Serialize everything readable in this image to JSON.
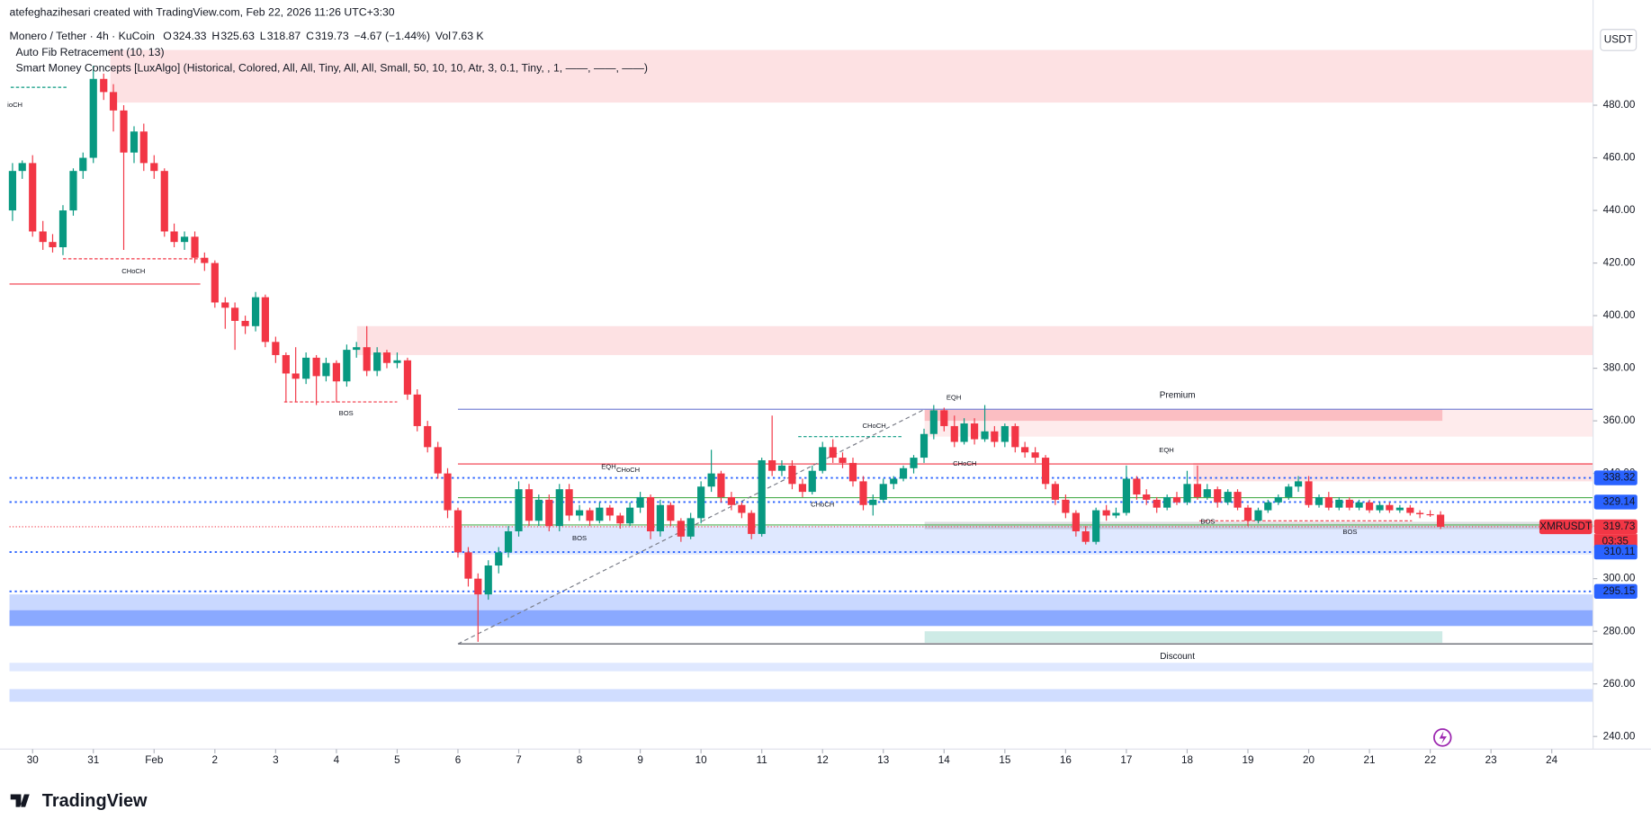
{
  "header": {
    "credit": "atefeghazihesari created with TradingView.com, Feb 22, 2026 11:26 UTC+3:30",
    "symbol": "Monero / Tether · 4h · KuCoin",
    "ohlc": [
      {
        "label": "O",
        "value": 324.33
      },
      {
        "label": "H",
        "value": 325.63
      },
      {
        "label": "L",
        "value": 318.87
      },
      {
        "label": "C",
        "value": 319.73
      }
    ],
    "change": "−4.67 (−1.44%)",
    "volume_label": "Vol",
    "volume": "7.63 K",
    "indicators": [
      "Auto Fib Retracement (10, 13)",
      "Smart Money Concepts [LuxAlgo] (Historical, Colored, All, All, Tiny, All, All, Small, 50, 10, 10, Atr, 3, 0.1, Tiny, , 1, ——, ——, ——)"
    ],
    "currency": "USDT",
    "brand": "TradingView"
  },
  "chart_data": {
    "type": "candlestick",
    "up_color": "#089981",
    "down_color": "#f23645",
    "grid": false,
    "xlim": [
      -0.38,
      25.68
    ],
    "ylim": [
      235.2,
      508.8
    ],
    "xticks": [
      {
        "value": 0,
        "label": "30"
      },
      {
        "value": 1,
        "label": "31"
      },
      {
        "value": 2,
        "label": "Feb"
      },
      {
        "value": 3,
        "label": "2"
      },
      {
        "value": 4,
        "label": "3"
      },
      {
        "value": 5,
        "label": "4"
      },
      {
        "value": 6,
        "label": "5"
      },
      {
        "value": 7,
        "label": "6"
      },
      {
        "value": 8,
        "label": "7"
      },
      {
        "value": 9,
        "label": "8"
      },
      {
        "value": 10,
        "label": "9"
      },
      {
        "value": 11,
        "label": "10"
      },
      {
        "value": 12,
        "label": "11"
      },
      {
        "value": 13,
        "label": "12"
      },
      {
        "value": 14,
        "label": "13"
      },
      {
        "value": 15,
        "label": "14"
      },
      {
        "value": 16,
        "label": "15"
      },
      {
        "value": 17,
        "label": "16"
      },
      {
        "value": 18,
        "label": "17"
      },
      {
        "value": 19,
        "label": "18"
      },
      {
        "value": 20,
        "label": "19"
      },
      {
        "value": 21,
        "label": "20"
      },
      {
        "value": 22,
        "label": "21"
      },
      {
        "value": 23,
        "label": "22"
      },
      {
        "value": 24,
        "label": "23"
      },
      {
        "value": 25,
        "label": "24"
      }
    ],
    "yticks": [
      {
        "value": 240,
        "label": "240.00"
      },
      {
        "value": 260,
        "label": "260.00"
      },
      {
        "value": 280,
        "label": "280.00"
      },
      {
        "value": 300,
        "label": "300.00"
      },
      {
        "value": 320,
        "label": "320.00"
      },
      {
        "value": 340,
        "label": "340.00"
      },
      {
        "value": 360,
        "label": "360.00"
      },
      {
        "value": 380,
        "label": "380.00"
      },
      {
        "value": 400,
        "label": "400.00"
      },
      {
        "value": 420,
        "label": "420.00"
      },
      {
        "value": 440,
        "label": "440.00"
      },
      {
        "value": 460,
        "label": "460.00"
      },
      {
        "value": 480,
        "label": "480.00"
      }
    ],
    "x": [
      -0.33,
      -0.17,
      0,
      0.17,
      0.33,
      0.5,
      0.67,
      0.83,
      1,
      1.17,
      1.33,
      1.5,
      1.67,
      1.83,
      2,
      2.17,
      2.33,
      2.5,
      2.67,
      2.83,
      3,
      3.17,
      3.33,
      3.5,
      3.67,
      3.83,
      4,
      4.17,
      4.33,
      4.5,
      4.67,
      4.83,
      5,
      5.17,
      5.33,
      5.5,
      5.67,
      5.83,
      6,
      6.17,
      6.33,
      6.5,
      6.67,
      6.83,
      7,
      7.17,
      7.33,
      7.5,
      7.67,
      7.83,
      8,
      8.17,
      8.33,
      8.5,
      8.67,
      8.83,
      9,
      9.17,
      9.33,
      9.5,
      9.67,
      9.83,
      10,
      10.17,
      10.33,
      10.5,
      10.67,
      10.83,
      11,
      11.17,
      11.33,
      11.5,
      11.67,
      11.83,
      12,
      12.17,
      12.33,
      12.5,
      12.67,
      12.83,
      13,
      13.17,
      13.33,
      13.5,
      13.67,
      13.83,
      14,
      14.17,
      14.33,
      14.5,
      14.67,
      14.83,
      15,
      15.17,
      15.33,
      15.5,
      15.67,
      15.83,
      16,
      16.17,
      16.33,
      16.5,
      16.67,
      16.83,
      17,
      17.17,
      17.33,
      17.5,
      17.67,
      17.83,
      18,
      18.17,
      18.33,
      18.5,
      18.67,
      18.83,
      19,
      19.17,
      19.33,
      19.5,
      19.67,
      19.83,
      20,
      20.17,
      20.33,
      20.5,
      20.67,
      20.83,
      21,
      21.17,
      21.33,
      21.5,
      21.67,
      21.83,
      22,
      22.17,
      22.33,
      22.5,
      22.67,
      22.83,
      23,
      23.17
    ],
    "open": [
      440,
      455,
      458,
      432,
      428,
      426,
      440,
      455,
      460,
      490,
      485,
      478,
      462,
      470,
      458,
      455,
      432,
      428,
      430,
      422,
      420,
      405,
      403,
      398,
      396,
      407,
      390,
      385,
      378,
      376,
      384,
      377,
      382,
      375,
      387,
      388,
      379,
      386,
      382,
      383,
      370,
      358,
      350,
      340,
      326,
      310,
      300,
      294,
      305,
      310,
      318,
      334,
      322,
      330,
      320,
      334,
      324,
      326,
      322,
      327,
      324,
      321,
      327,
      331,
      318,
      328,
      322,
      316,
      323,
      335,
      340,
      331,
      328,
      325,
      317,
      345,
      341,
      343,
      336,
      333,
      341,
      350,
      346,
      344,
      337,
      328,
      330,
      336,
      338,
      342,
      346,
      355,
      364,
      358,
      352,
      359,
      353,
      356,
      352,
      358,
      350,
      348,
      346,
      336,
      330,
      325,
      318,
      314,
      326,
      324,
      325,
      338,
      332,
      330,
      327,
      331,
      329,
      336,
      331,
      334,
      329,
      333,
      327,
      322,
      326,
      329,
      331,
      335,
      337,
      328,
      331,
      327,
      330,
      327,
      329,
      326,
      328,
      326,
      327,
      325,
      324.5,
      324.33
    ],
    "high": [
      458,
      459,
      461,
      436,
      431,
      442,
      456,
      462,
      495,
      492,
      488,
      480,
      472,
      473,
      461,
      456,
      435,
      432,
      432,
      424,
      421,
      407,
      405,
      400,
      409,
      408,
      392,
      386,
      388,
      386,
      385,
      384,
      383,
      389,
      390,
      396,
      388,
      387,
      386,
      384,
      372,
      360,
      352,
      342,
      327,
      312,
      302,
      307,
      312,
      320,
      337,
      336,
      332,
      332,
      336,
      336,
      328,
      327,
      329,
      328,
      325,
      329,
      333,
      332,
      330,
      329,
      323,
      325,
      337,
      349,
      341,
      333,
      329,
      326,
      346,
      362,
      345,
      345,
      338,
      343,
      352,
      353,
      348,
      346,
      339,
      332,
      338,
      339,
      343,
      347,
      357,
      366,
      365,
      362,
      361,
      361,
      366,
      358,
      359,
      359,
      352,
      350,
      347,
      337,
      332,
      326,
      320,
      327,
      328,
      327,
      343,
      339,
      334,
      331,
      332,
      333,
      341,
      343,
      336,
      335,
      334,
      334,
      328,
      327,
      330,
      332,
      336,
      339,
      339,
      332,
      333,
      331,
      331,
      330,
      330,
      329,
      329,
      328,
      328,
      326,
      326,
      325.63
    ],
    "low": [
      436,
      452,
      430,
      425,
      424,
      423,
      438,
      452,
      458,
      482,
      470,
      425,
      458,
      455,
      452,
      430,
      426,
      425,
      420,
      417,
      403,
      395,
      387,
      393,
      394,
      388,
      382,
      367,
      367,
      374,
      366,
      375,
      367,
      373,
      384,
      377,
      377,
      380,
      380,
      368,
      356,
      348,
      338,
      323,
      308,
      297,
      276,
      292,
      302,
      308,
      316,
      320,
      320,
      318,
      318,
      322,
      322,
      320,
      321,
      322,
      319,
      320,
      325,
      315,
      316,
      320,
      314,
      315,
      321,
      333,
      329,
      326,
      323,
      315,
      316,
      339,
      339,
      334,
      331,
      332,
      340,
      344,
      342,
      335,
      326,
      324,
      329,
      334,
      337,
      340,
      344,
      353,
      356,
      350,
      351,
      351,
      352,
      350,
      350,
      348,
      346,
      344,
      334,
      328,
      323,
      316,
      313,
      313,
      322,
      323,
      324,
      330,
      328,
      325,
      326,
      328,
      328,
      330,
      330,
      327,
      328,
      326,
      320,
      321,
      325,
      328,
      330,
      333,
      327,
      327,
      326,
      326,
      326,
      326,
      325,
      325,
      325,
      325,
      324,
      323,
      323.5,
      318.87
    ],
    "close": [
      455,
      458,
      432,
      428,
      426,
      440,
      455,
      460,
      490,
      485,
      478,
      462,
      470,
      458,
      455,
      432,
      428,
      430,
      422,
      420,
      405,
      403,
      398,
      396,
      407,
      390,
      385,
      378,
      376,
      384,
      377,
      382,
      375,
      387,
      388,
      379,
      386,
      382,
      383,
      370,
      358,
      350,
      340,
      326,
      310,
      300,
      294,
      305,
      310,
      318,
      334,
      322,
      330,
      320,
      334,
      324,
      326,
      322,
      327,
      324,
      321,
      327,
      331,
      318,
      328,
      322,
      316,
      323,
      335,
      340,
      331,
      328,
      325,
      317,
      345,
      341,
      343,
      336,
      333,
      341,
      350,
      346,
      344,
      337,
      328,
      330,
      336,
      338,
      342,
      346,
      355,
      364,
      358,
      352,
      359,
      353,
      356,
      352,
      358,
      350,
      348,
      346,
      336,
      330,
      325,
      318,
      314,
      326,
      324,
      325,
      338,
      332,
      330,
      327,
      331,
      329,
      336,
      331,
      334,
      329,
      333,
      327,
      322,
      326,
      329,
      331,
      335,
      337,
      328,
      331,
      327,
      330,
      327,
      329,
      326,
      328,
      326,
      327,
      325,
      324.5,
      324.33,
      319.73
    ],
    "zones": [
      {
        "x": [
          1.28,
          25.68
        ],
        "y": [
          481,
          501
        ],
        "color": "#f23645",
        "opacity": 0.15
      },
      {
        "x": [
          5.34,
          25.68
        ],
        "y": [
          385,
          396
        ],
        "color": "#f23645",
        "opacity": 0.15
      },
      {
        "x": [
          14.68,
          25.68
        ],
        "y": [
          354,
          364.4
        ],
        "color": "#f23645",
        "opacity": 0.1
      },
      {
        "x": [
          14.68,
          23.2
        ],
        "y": [
          360,
          364.4
        ],
        "color": "#f23645",
        "opacity": 0.25
      },
      {
        "x": [
          19.1,
          25.68
        ],
        "y": [
          337,
          344
        ],
        "color": "#f23645",
        "opacity": 0.15
      },
      {
        "x": [
          7.0,
          25.68
        ],
        "y": [
          309.2,
          320
        ],
        "color": "#2962ff",
        "opacity": 0.15
      },
      {
        "x": [
          14.68,
          25.68
        ],
        "y": [
          318.8,
          321.6
        ],
        "color": "#787b86",
        "opacity": 0.25
      },
      {
        "x": [
          -0.38,
          25.68
        ],
        "y": [
          288,
          294
        ],
        "color": "#2962ff",
        "opacity": 0.25
      },
      {
        "x": [
          -0.38,
          25.68
        ],
        "y": [
          282,
          288
        ],
        "color": "#2962ff",
        "opacity": 0.55
      },
      {
        "x": [
          -0.38,
          25.68
        ],
        "y": [
          264.8,
          268
        ],
        "color": "#2962ff",
        "opacity": 0.15
      },
      {
        "x": [
          -0.38,
          25.68
        ],
        "y": [
          253.2,
          258
        ],
        "color": "#2962ff",
        "opacity": 0.22
      },
      {
        "x": [
          14.68,
          23.2
        ],
        "y": [
          275.6,
          280
        ],
        "color": "#089981",
        "opacity": 0.2
      }
    ],
    "segments": [
      {
        "x": [
          -0.38,
          2.76
        ],
        "y": [
          412,
          412
        ],
        "color": "#f23645",
        "dash": "none"
      },
      {
        "x": [
          7.0,
          25.68
        ],
        "y": [
          364.4,
          364.4
        ],
        "color": "#7b86d6",
        "dash": "none"
      },
      {
        "x": [
          7.0,
          25.68
        ],
        "y": [
          275.2,
          275.2
        ],
        "color": "#434651",
        "dash": "none"
      },
      {
        "x": [
          7.0,
          25.68
        ],
        "y": [
          343.6,
          343.6
        ],
        "color": "#f23645",
        "dash": "none"
      },
      {
        "x": [
          7.0,
          25.68
        ],
        "y": [
          330.8,
          330.8
        ],
        "color": "#4caf50",
        "dash": "none"
      },
      {
        "x": [
          7.0,
          25.68
        ],
        "y": [
          320.4,
          320.4
        ],
        "color": "#4caf50",
        "dash": "none"
      },
      {
        "x": [
          7.0,
          14.68
        ],
        "y": [
          275.2,
          364.4
        ],
        "color": "#787b86",
        "dash": "4 3"
      },
      {
        "x": [
          0.5,
          2.76
        ],
        "y": [
          421.6,
          421.6
        ],
        "color": "#f23645",
        "dash": "3 2"
      },
      {
        "x": [
          4.14,
          6.0
        ],
        "y": [
          367.2,
          367.2
        ],
        "color": "#f23645",
        "dash": "3 2"
      },
      {
        "x": [
          -0.36,
          0.59
        ],
        "y": [
          486.8,
          486.8
        ],
        "color": "#089981",
        "dash": "3 2"
      },
      {
        "x": [
          12.6,
          14.3
        ],
        "y": [
          354,
          354
        ],
        "color": "#089981",
        "dash": "3 2"
      },
      {
        "x": [
          19.2,
          22.7
        ],
        "y": [
          322,
          322
        ],
        "color": "#f23645",
        "dash": "3 2"
      }
    ],
    "annotations": [
      {
        "text": "ioCH",
        "x": -0.29,
        "y": 480,
        "color": "#089981"
      },
      {
        "text": "CHoCH",
        "x": 1.66,
        "y": 416.8,
        "color": "#f23645"
      },
      {
        "text": "BOS",
        "x": 5.16,
        "y": 362.8,
        "color": "#f23645"
      },
      {
        "text": "EQH",
        "x": 9.48,
        "y": 342.4,
        "color": "#f23645"
      },
      {
        "text": "CHoCH",
        "x": 9.8,
        "y": 341.2,
        "color": "#089981"
      },
      {
        "text": "BOS",
        "x": 9.0,
        "y": 315.2,
        "color": "#f23645"
      },
      {
        "text": "CHoCH",
        "x": 13.85,
        "y": 358,
        "color": "#089981"
      },
      {
        "text": "CHoCH",
        "x": 13.0,
        "y": 328,
        "color": "#f23645"
      },
      {
        "text": "EQH",
        "x": 15.16,
        "y": 368.8,
        "color": "#f23645"
      },
      {
        "text": "CHoCH",
        "x": 15.34,
        "y": 343.6,
        "color": "#f23645"
      },
      {
        "text": "EQH",
        "x": 18.66,
        "y": 348.8,
        "color": "#f23645"
      },
      {
        "text": "BOS",
        "x": 19.34,
        "y": 321.6,
        "color": "#f23645"
      },
      {
        "text": "BOS",
        "x": 21.68,
        "y": 317.6,
        "color": "#f23645"
      },
      {
        "text": "Premium",
        "x": 18.84,
        "y": 369.6,
        "color": "#f23645"
      },
      {
        "text": "Discount",
        "x": 18.84,
        "y": 270.4,
        "color": "#089981"
      }
    ],
    "price_lines": [
      {
        "value": 338.32,
        "color": "#2962ff"
      },
      {
        "value": 329.14,
        "color": "#2962ff"
      },
      {
        "value": 319.73,
        "color": "#f23645",
        "symbol": "XMRUSDT",
        "countdown": "03:35"
      },
      {
        "value": 310.11,
        "color": "#2962ff"
      },
      {
        "value": 295.15,
        "color": "#2962ff"
      }
    ]
  }
}
